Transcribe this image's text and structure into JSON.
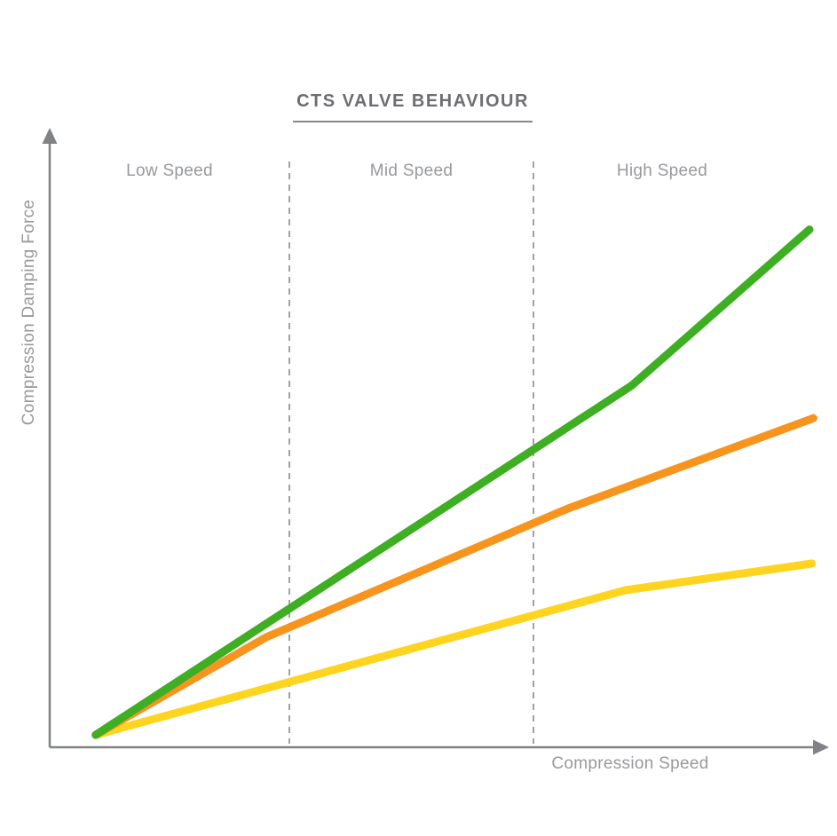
{
  "title": "CTS VALVE BEHAVIOUR",
  "colors": {
    "green": "#3EAE22",
    "orange": "#F7941E",
    "yellow": "#FFD41F",
    "axis": "#808285",
    "title_text": "#6D6E71",
    "label_text": "#97999C"
  },
  "chart_data": {
    "type": "line",
    "title": "CTS VALVE BEHAVIOUR",
    "xlabel": "Compression Speed",
    "ylabel": "Compression Damping Force",
    "legend_position": "none",
    "grid": false,
    "axis_ticks": "none (qualitative axes with arrowheads)",
    "zone_labels": [
      "Low Speed",
      "Mid Speed",
      "High Speed"
    ],
    "zone_boundaries_x": [
      0.3075,
      0.6207
    ],
    "xlim": [
      0,
      1
    ],
    "ylim": [
      0,
      1
    ],
    "series": [
      {
        "name": "yellow-line",
        "color": "#FFD41F",
        "points": [
          [
            0.059,
            0.02
          ],
          [
            0.739,
            0.254
          ],
          [
            0.978,
            0.297
          ]
        ]
      },
      {
        "name": "orange-line",
        "color": "#F7941E",
        "points": [
          [
            0.059,
            0.02
          ],
          [
            0.278,
            0.178
          ],
          [
            0.665,
            0.386
          ],
          [
            0.98,
            0.532
          ]
        ]
      },
      {
        "name": "green-line",
        "color": "#3EAE22",
        "points": [
          [
            0.059,
            0.02
          ],
          [
            0.747,
            0.585
          ],
          [
            0.975,
            0.837
          ]
        ]
      }
    ]
  }
}
